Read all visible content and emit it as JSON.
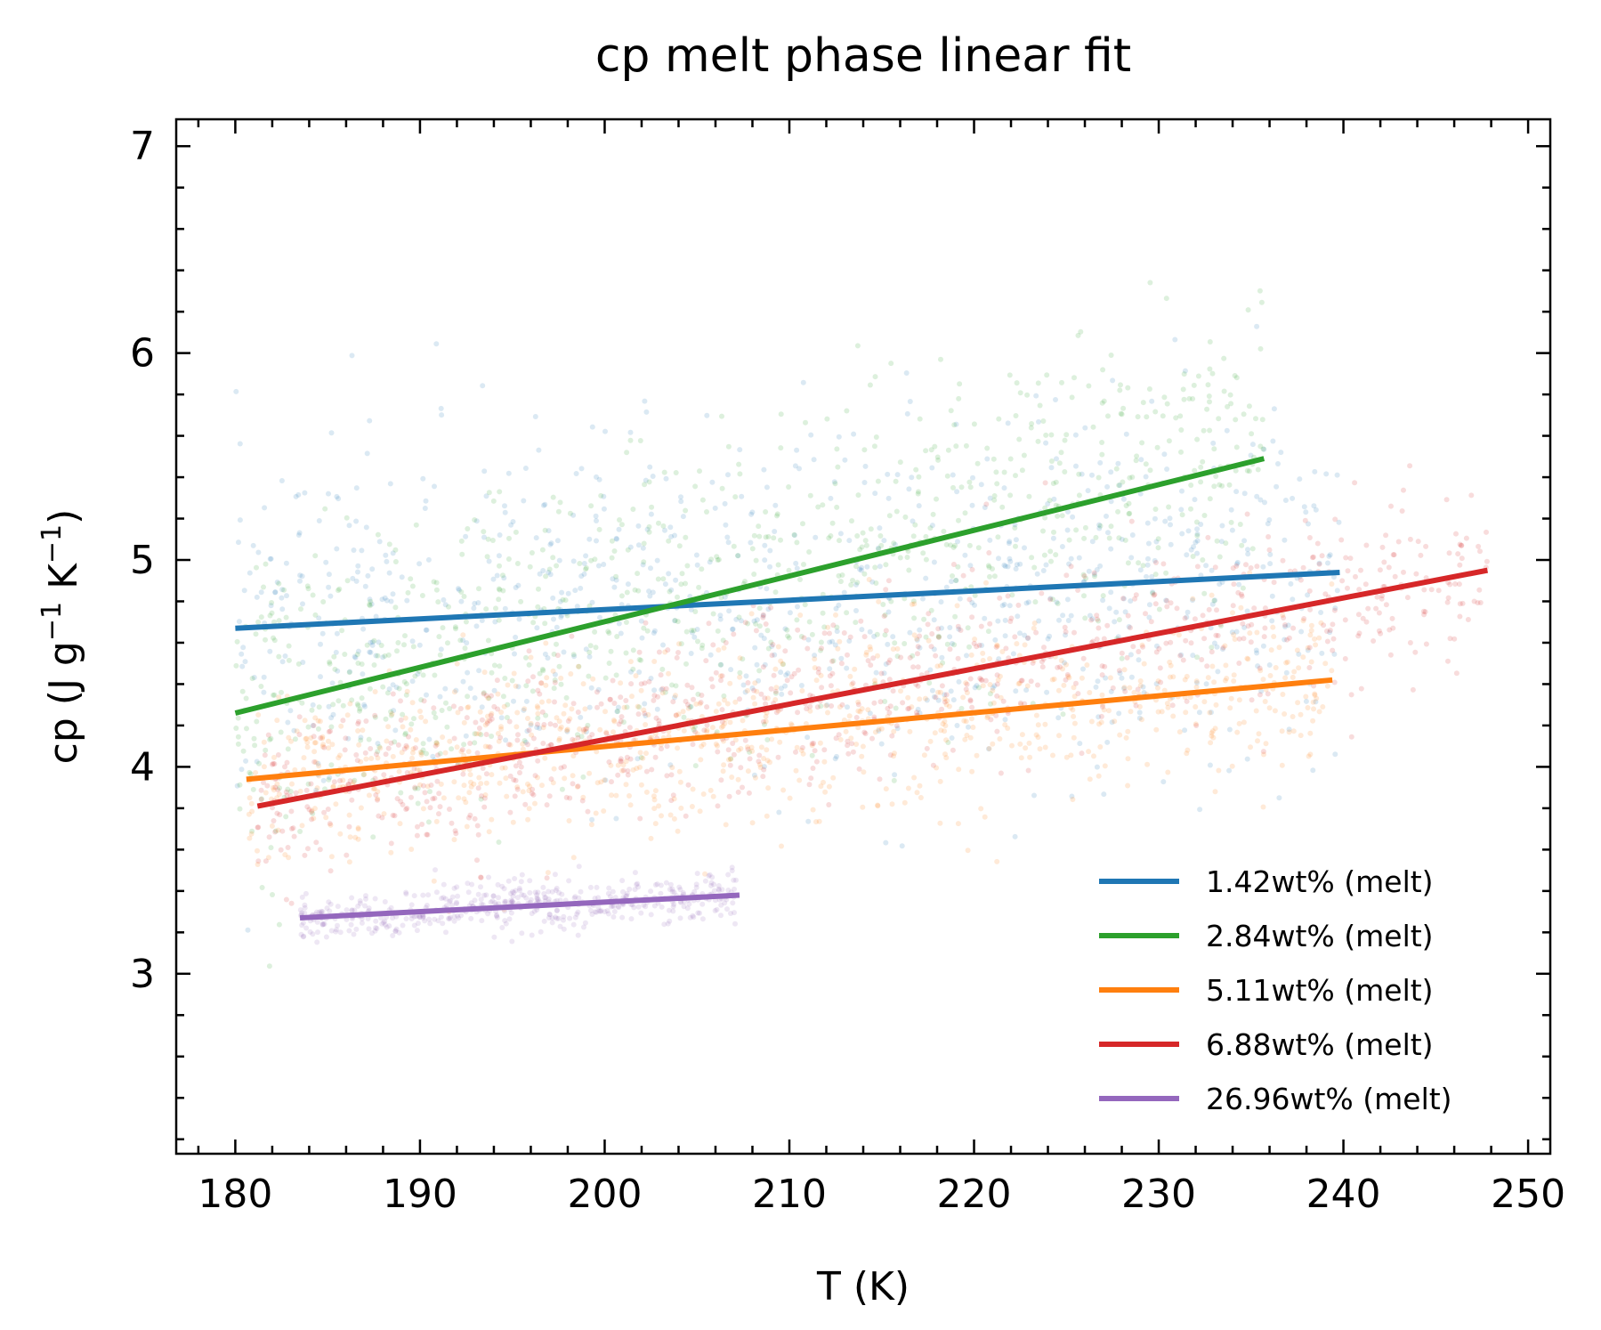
{
  "chart_data": {
    "type": "line",
    "title": "cp melt phase linear fit",
    "xlabel": "T (K)",
    "ylabel_parts": {
      "base": "cp (J g",
      "exp1": "−1",
      "mid": " K",
      "exp2": "−1",
      "end": ")"
    },
    "xlim": [
      176.8,
      251.2
    ],
    "ylim": [
      2.13,
      7.13
    ],
    "x_ticks": [
      180,
      190,
      200,
      210,
      220,
      230,
      240,
      250
    ],
    "y_ticks": [
      3,
      4,
      5,
      6,
      7
    ],
    "grid": false,
    "legend_position": "bottom-right",
    "series": [
      {
        "name": "1.42wt% (melt)",
        "color": "#1f77b4",
        "x": [
          180.0,
          239.8
        ],
        "y": [
          4.67,
          4.94
        ]
      },
      {
        "name": "2.84wt% (melt)",
        "color": "#2ca02c",
        "x": [
          180.0,
          235.7
        ],
        "y": [
          4.26,
          5.49
        ]
      },
      {
        "name": "5.11wt% (melt)",
        "color": "#ff7f0e",
        "x": [
          180.6,
          239.4
        ],
        "y": [
          3.94,
          4.42
        ]
      },
      {
        "name": "6.88wt% (melt)",
        "color": "#d62728",
        "x": [
          181.2,
          247.8
        ],
        "y": [
          3.81,
          4.95
        ]
      },
      {
        "name": "26.96wt% (melt)",
        "color": "#9467bd",
        "x": [
          183.5,
          207.3
        ],
        "y": [
          3.27,
          3.38
        ]
      }
    ]
  }
}
